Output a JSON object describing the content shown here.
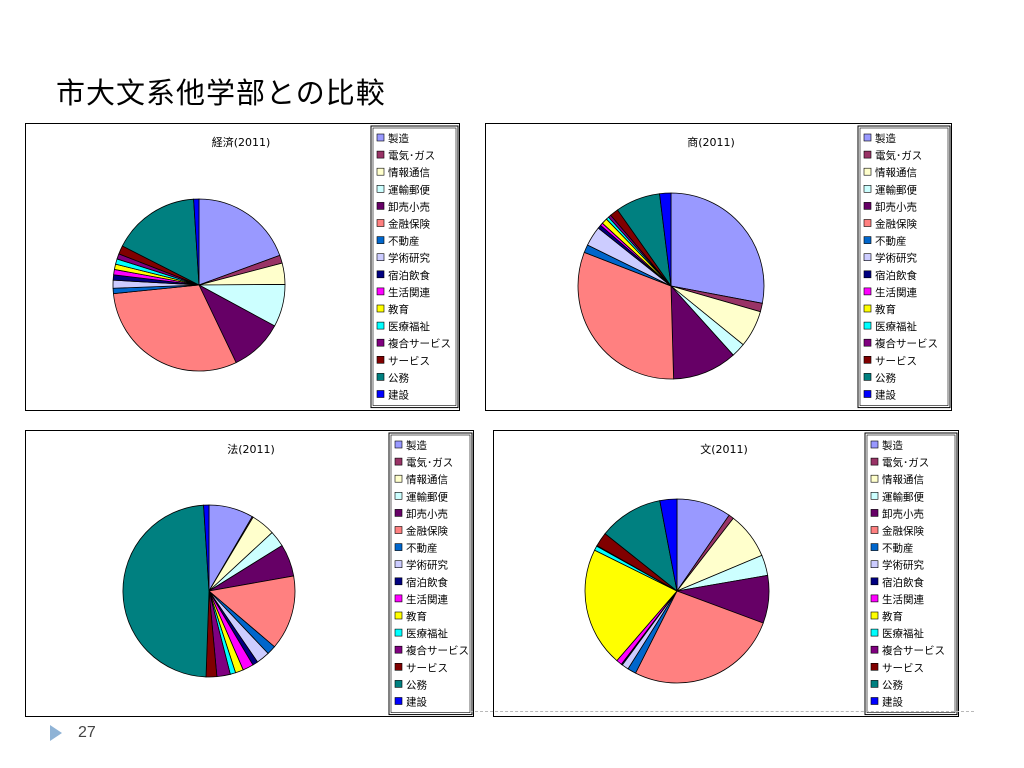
{
  "slide": {
    "title": "市大文系他学部との比較",
    "page_number": "27"
  },
  "chart_data": [
    {
      "type": "pie",
      "title": "経済(2011)",
      "categories": [
        "製造",
        "電気･ガス",
        "情報通信",
        "運輸郵便",
        "卸売小売",
        "金融保険",
        "不動産",
        "学術研究",
        "宿泊飲食",
        "生活関連",
        "教育",
        "医療福祉",
        "複合サービス",
        "サービス",
        "公務",
        "建設"
      ],
      "values": [
        19.4,
        1.5,
        4.0,
        8.0,
        10.0,
        30.5,
        1.0,
        1.5,
        1.0,
        1.0,
        1.0,
        1.0,
        1.0,
        1.6,
        16.5,
        1.0
      ]
    },
    {
      "type": "pie",
      "title": "商(2011)",
      "categories": [
        "製造",
        "電気･ガス",
        "情報通信",
        "運輸郵便",
        "卸売小売",
        "金融保険",
        "不動産",
        "学術研究",
        "宿泊飲食",
        "生活関連",
        "教育",
        "医療福祉",
        "複合サービス",
        "サービス",
        "公務",
        "建設"
      ],
      "values": [
        28.4,
        1.5,
        6.5,
        2.5,
        11.4,
        31.8,
        1.4,
        3.5,
        0.6,
        0.5,
        1.0,
        0.5,
        0.5,
        1.5,
        7.9,
        2.0
      ]
    },
    {
      "type": "pie",
      "title": "法(2011)",
      "categories": [
        "製造",
        "電気･ガス",
        "情報通信",
        "運輸郵便",
        "卸売小売",
        "金融保険",
        "不動産",
        "学術研究",
        "宿泊飲食",
        "生活関連",
        "教育",
        "医療福祉",
        "複合サービス",
        "サービス",
        "公務",
        "建設"
      ],
      "values": [
        8.3,
        0.2,
        4.5,
        3.0,
        6.0,
        13.9,
        1.7,
        2.5,
        1.0,
        2.0,
        1.5,
        1.0,
        2.5,
        2.0,
        48.0,
        1.0
      ]
    },
    {
      "type": "pie",
      "title": "文(2011)",
      "categories": [
        "製造",
        "電気･ガス",
        "情報通信",
        "運輸郵便",
        "卸売小売",
        "金融保険",
        "不動産",
        "学術研究",
        "宿泊飲食",
        "生活関連",
        "教育",
        "医療福祉",
        "複合サービス",
        "サービス",
        "公務",
        "建設"
      ],
      "values": [
        9.6,
        0.9,
        8.2,
        3.6,
        8.4,
        26.8,
        1.5,
        1.2,
        0.2,
        1.0,
        21.0,
        0.8,
        0.1,
        2.5,
        11.3,
        3.0
      ]
    }
  ],
  "legend_colors": [
    "#9999ff",
    "#993366",
    "#ffffcc",
    "#ccffff",
    "#660066",
    "#ff8080",
    "#0066cc",
    "#ccccff",
    "#000080",
    "#ff00ff",
    "#ffff00",
    "#00ffff",
    "#800080",
    "#800000",
    "#008080",
    "#0000ff"
  ]
}
